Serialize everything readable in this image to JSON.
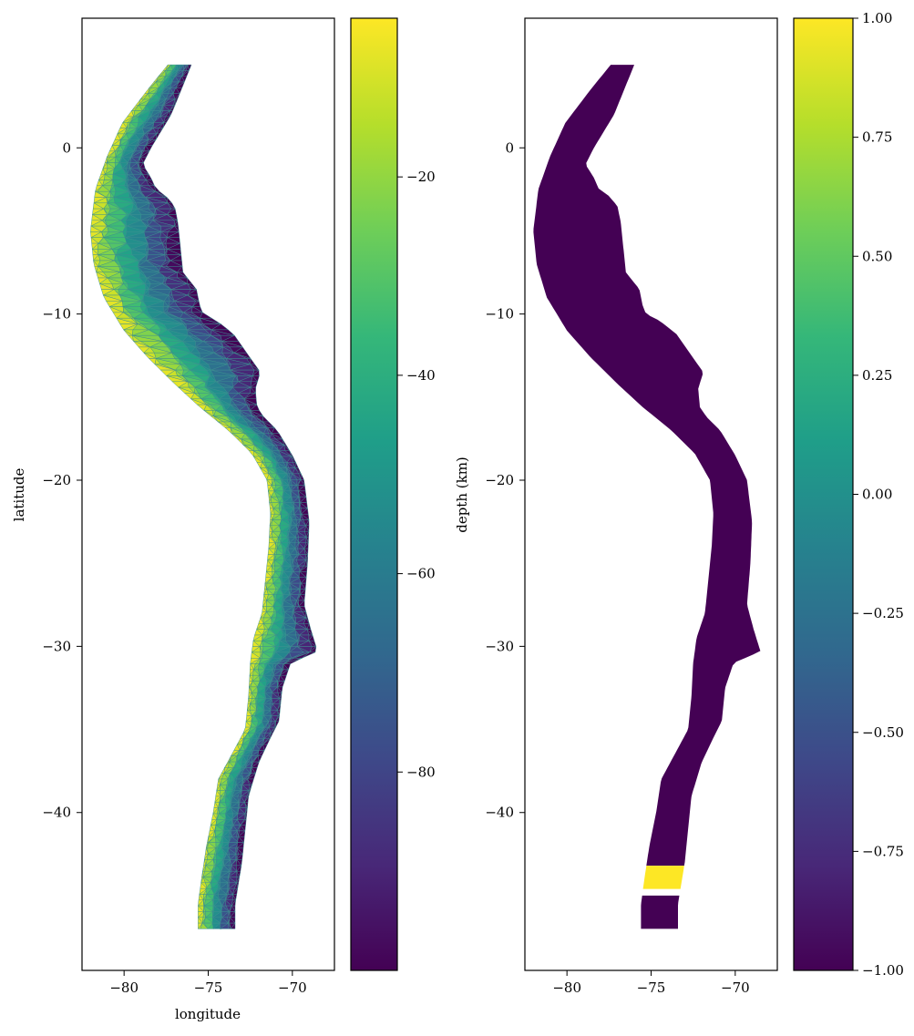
{
  "chart_data": [
    {
      "type": "triangulated-mesh",
      "xlabel": "longitude",
      "ylabel": "latitude",
      "xlim": [
        -82.5,
        -67.5
      ],
      "ylim": [
        -49.5,
        7.8
      ],
      "xticks": [
        -80,
        -75,
        -70
      ],
      "yticks": [
        0,
        -10,
        -20,
        -30,
        -40
      ],
      "xtick_labels": [
        "−80",
        "−75",
        "−70"
      ],
      "ytick_labels": [
        "0",
        "−10",
        "−20",
        "−30",
        "−40"
      ],
      "colormap": "viridis",
      "colorbar": {
        "label": "depth (km)",
        "range": [
          -100,
          -4
        ],
        "ticks": [
          -20,
          -40,
          -60,
          -80
        ],
        "tick_labels": [
          "−20",
          "−40",
          "−60",
          "−80"
        ]
      },
      "trench_outline": [
        [
          -77.4,
          5.0
        ],
        [
          -78.6,
          3.5
        ],
        [
          -80.1,
          1.5
        ],
        [
          -81.0,
          -0.5
        ],
        [
          -81.7,
          -2.5
        ],
        [
          -82.0,
          -5.0
        ],
        [
          -81.8,
          -7.0
        ],
        [
          -81.2,
          -9.0
        ],
        [
          -80.0,
          -11.0
        ],
        [
          -78.6,
          -12.6
        ],
        [
          -77.0,
          -14.2
        ],
        [
          -75.5,
          -15.6
        ],
        [
          -73.8,
          -17.0
        ],
        [
          -72.4,
          -18.4
        ],
        [
          -71.5,
          -20.0
        ],
        [
          -71.3,
          -22.0
        ],
        [
          -71.4,
          -24.0
        ],
        [
          -71.6,
          -26.0
        ],
        [
          -71.8,
          -28.0
        ],
        [
          -72.3,
          -29.5
        ],
        [
          -72.5,
          -31.0
        ],
        [
          -72.6,
          -33.0
        ],
        [
          -72.8,
          -35.0
        ],
        [
          -73.6,
          -36.5
        ],
        [
          -74.4,
          -38.0
        ],
        [
          -74.7,
          -40.0
        ],
        [
          -75.1,
          -42.0
        ],
        [
          -75.4,
          -44.0
        ],
        [
          -75.6,
          -45.5
        ],
        [
          -75.6,
          -47.0
        ]
      ],
      "deep_outline": [
        [
          -73.4,
          -47.0
        ],
        [
          -73.4,
          -45.5
        ],
        [
          -73.0,
          -43.0
        ],
        [
          -72.8,
          -41.0
        ],
        [
          -72.6,
          -39.0
        ],
        [
          -72.0,
          -37.0
        ],
        [
          -71.3,
          -35.5
        ],
        [
          -70.8,
          -34.5
        ],
        [
          -70.6,
          -32.5
        ],
        [
          -70.1,
          -31.0
        ],
        [
          -68.5,
          -30.3
        ],
        [
          -68.9,
          -29.0
        ],
        [
          -69.3,
          -27.5
        ],
        [
          -69.1,
          -25.0
        ],
        [
          -69.0,
          -22.5
        ],
        [
          -69.3,
          -20.0
        ],
        [
          -70.0,
          -18.5
        ],
        [
          -70.9,
          -17.0
        ],
        [
          -71.7,
          -16.2
        ],
        [
          -72.1,
          -15.6
        ],
        [
          -72.2,
          -14.5
        ],
        [
          -71.9,
          -13.5
        ],
        [
          -72.6,
          -12.5
        ],
        [
          -73.5,
          -11.2
        ],
        [
          -74.5,
          -10.4
        ],
        [
          -75.3,
          -10.0
        ],
        [
          -75.5,
          -9.5
        ],
        [
          -75.7,
          -8.5
        ],
        [
          -76.5,
          -7.5
        ],
        [
          -76.6,
          -6.5
        ],
        [
          -76.7,
          -5.5
        ],
        [
          -76.8,
          -4.5
        ],
        [
          -77.0,
          -3.5
        ],
        [
          -77.6,
          -2.8
        ],
        [
          -78.1,
          -2.5
        ],
        [
          -78.4,
          -1.8
        ],
        [
          -78.9,
          -1.0
        ],
        [
          -78.4,
          0.0
        ],
        [
          -77.8,
          1.0
        ],
        [
          -77.2,
          2.0
        ],
        [
          -76.6,
          3.5
        ],
        [
          -76.0,
          5.0
        ]
      ]
    },
    {
      "type": "filled-region",
      "xlim": [
        -82.5,
        -67.5
      ],
      "ylim": [
        -49.5,
        7.8
      ],
      "xticks": [
        -80,
        -75,
        -70
      ],
      "yticks": [
        0,
        -10,
        -20,
        -30,
        -40
      ],
      "xtick_labels": [
        "−80",
        "−75",
        "−70"
      ],
      "ytick_labels": [
        "0",
        "−10",
        "−20",
        "−30",
        "−40"
      ],
      "colormap": "viridis",
      "colorbar": {
        "range": [
          -1.0,
          1.0
        ],
        "ticks": [
          1.0,
          0.75,
          0.5,
          0.25,
          0.0,
          -0.25,
          -0.5,
          -0.75,
          -1.0
        ],
        "tick_labels": [
          "1.00",
          "0.75",
          "0.50",
          "0.25",
          "0.00",
          "−0.25",
          "−0.50",
          "−0.75",
          "−1.00"
        ]
      },
      "values": {
        "background": -1.0,
        "highlighted_band": 1.0
      },
      "highlighted_band_lat": [
        -43.2,
        -44.6
      ],
      "gap_lat": [
        -44.6,
        -45.0
      ]
    }
  ],
  "colors": {
    "viridis": [
      "#440154",
      "#482878",
      "#3e4989",
      "#31688e",
      "#26828e",
      "#1f9e89",
      "#35b779",
      "#6ece58",
      "#b5de2b",
      "#fde725"
    ],
    "mesh_line": "#3a8f8e"
  }
}
